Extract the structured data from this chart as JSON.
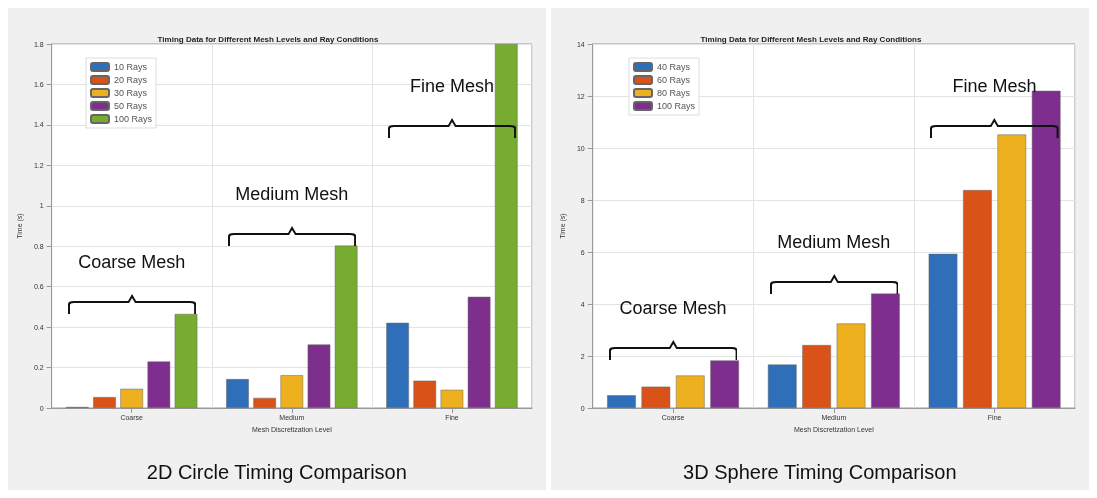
{
  "chart_data": [
    {
      "type": "bar",
      "title": "Timing Data for Different Mesh Levels and Ray Conditions",
      "xlabel": "Mesh Discretization Level",
      "ylabel": "Time (s)",
      "categories": [
        "Coarse",
        "Medium",
        "Fine"
      ],
      "series": [
        {
          "name": "10 Rays",
          "color": "#2f6fba",
          "values": [
            0.005,
            0.143,
            0.421
          ]
        },
        {
          "name": "20 Rays",
          "color": "#d95319",
          "values": [
            0.054,
            0.05,
            0.135
          ]
        },
        {
          "name": "30 Rays",
          "color": "#edb120",
          "values": [
            0.095,
            0.162,
            0.09
          ]
        },
        {
          "name": "50 Rays",
          "color": "#7e2f8e",
          "values": [
            0.23,
            0.314,
            0.55
          ]
        },
        {
          "name": "100 Rays",
          "color": "#77ac30",
          "values": [
            0.465,
            0.803,
            1.8
          ]
        }
      ],
      "ylim": [
        0,
        1.8
      ],
      "yticks": [
        0,
        0.2,
        0.4,
        0.6,
        0.8,
        1,
        1.2,
        1.4,
        1.6,
        1.8
      ],
      "grid": true,
      "legend": "top left",
      "annotations": [
        "Coarse Mesh",
        "Medium Mesh",
        "Fine Mesh",
        "2D Circle Timing Comparison"
      ]
    },
    {
      "type": "bar",
      "title": "Timing Data for Different Mesh Levels and Ray Conditions",
      "xlabel": "Mesh Discretization Level",
      "ylabel": "Time (s)",
      "categories": [
        "Coarse",
        "Medium",
        "Fine"
      ],
      "series": [
        {
          "name": "40 Rays",
          "color": "#2f6fba",
          "values": [
            0.49,
            1.67,
            5.93
          ]
        },
        {
          "name": "60 Rays",
          "color": "#d95319",
          "values": [
            0.82,
            2.42,
            8.38
          ]
        },
        {
          "name": "80 Rays",
          "color": "#edb120",
          "values": [
            1.25,
            3.25,
            10.52
          ]
        },
        {
          "name": "100 Rays",
          "color": "#7e2f8e",
          "values": [
            1.83,
            4.4,
            12.2
          ]
        }
      ],
      "ylim": [
        0,
        14
      ],
      "yticks": [
        0,
        2,
        4,
        6,
        8,
        10,
        12,
        14
      ],
      "grid": true,
      "legend": "top left",
      "annotations": [
        "Coarse Mesh",
        "Medium Mesh",
        "Fine Mesh",
        "3D Sphere Timing Comparison"
      ]
    }
  ]
}
